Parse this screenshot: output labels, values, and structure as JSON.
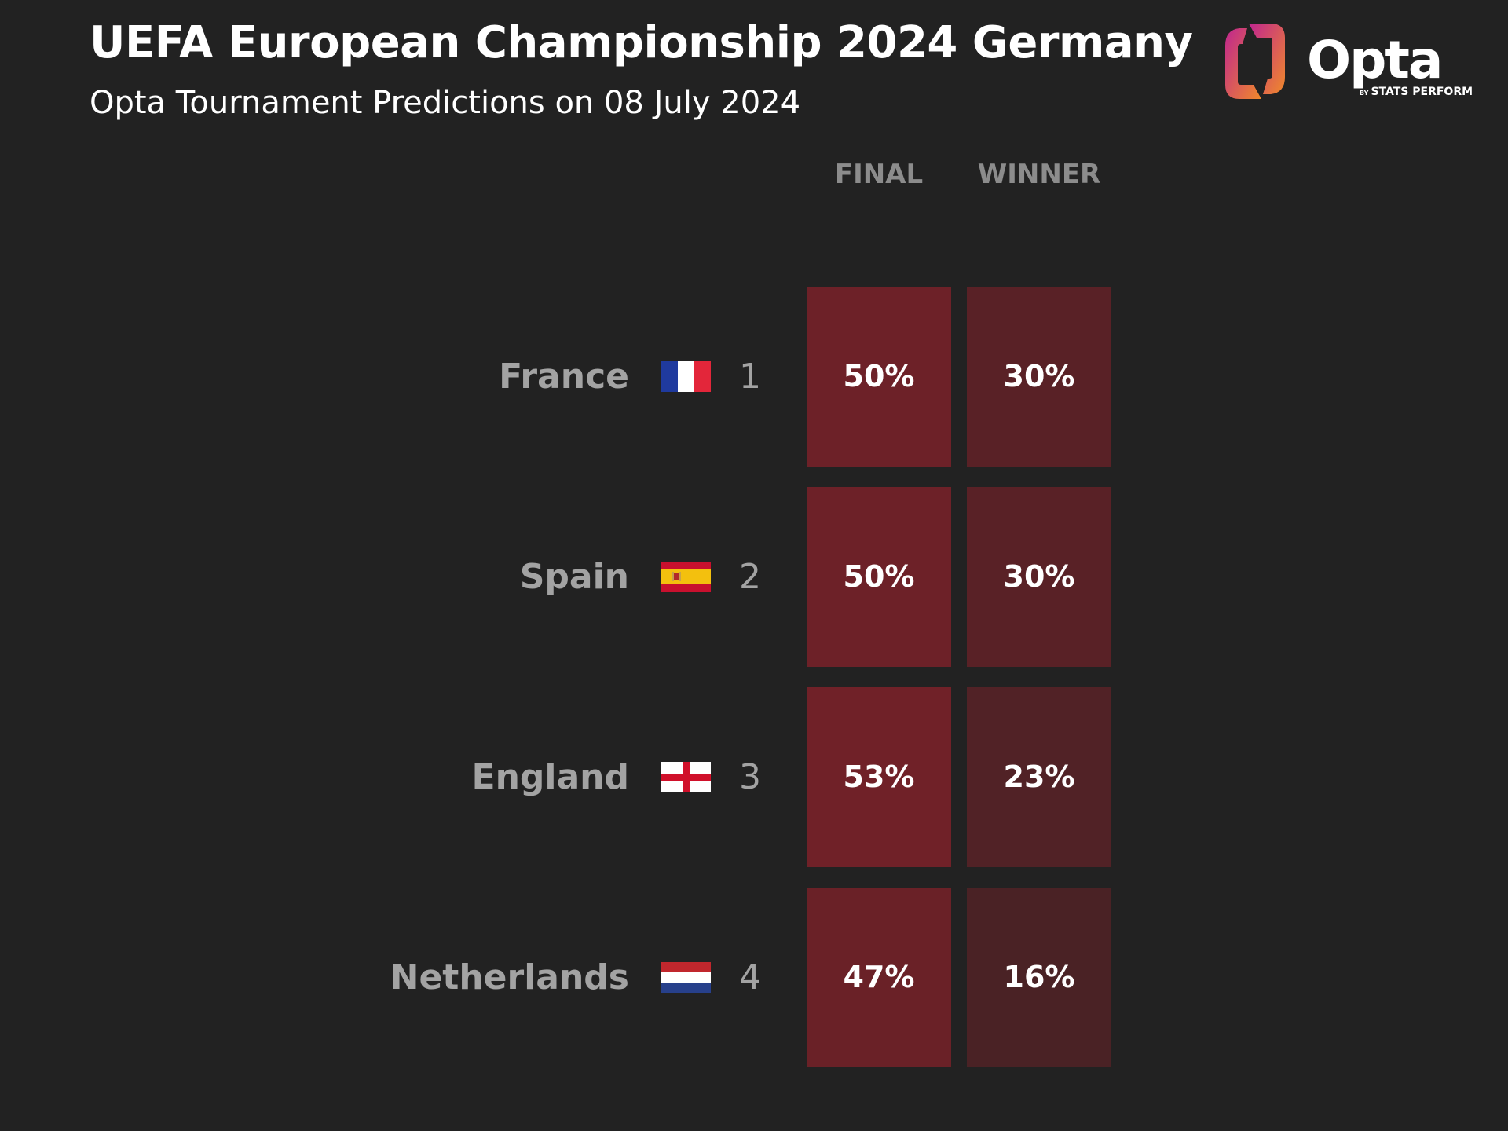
{
  "header": {
    "title": "UEFA European Championship 2024 Germany",
    "subtitle": "Opta Tournament Predictions on 08 July 2024"
  },
  "logo": {
    "word": "Opta",
    "by": "BY",
    "company": "STATS PERFORM",
    "icon": "opta-mark-icon",
    "gradient": [
      "#c0268f",
      "#f0892a"
    ]
  },
  "chart_data": {
    "type": "table",
    "columns": [
      "FINAL",
      "WINNER"
    ],
    "rows": [
      {
        "team": "France",
        "rank": "1",
        "flag": "france-flag-icon",
        "final": 50,
        "winner": 30
      },
      {
        "team": "Spain",
        "rank": "2",
        "flag": "spain-flag-icon",
        "final": 50,
        "winner": 30
      },
      {
        "team": "England",
        "rank": "3",
        "flag": "england-flag-icon",
        "final": 53,
        "winner": 23
      },
      {
        "team": "Netherlands",
        "rank": "4",
        "flag": "netherlands-flag-icon",
        "final": 47,
        "winner": 16
      }
    ],
    "value_suffix": "%",
    "colors": {
      "background": "#222222",
      "cell_high": "#722128",
      "cell_low": "#3a2224",
      "text": "#ffffff",
      "label": "#a3a3a3"
    }
  }
}
